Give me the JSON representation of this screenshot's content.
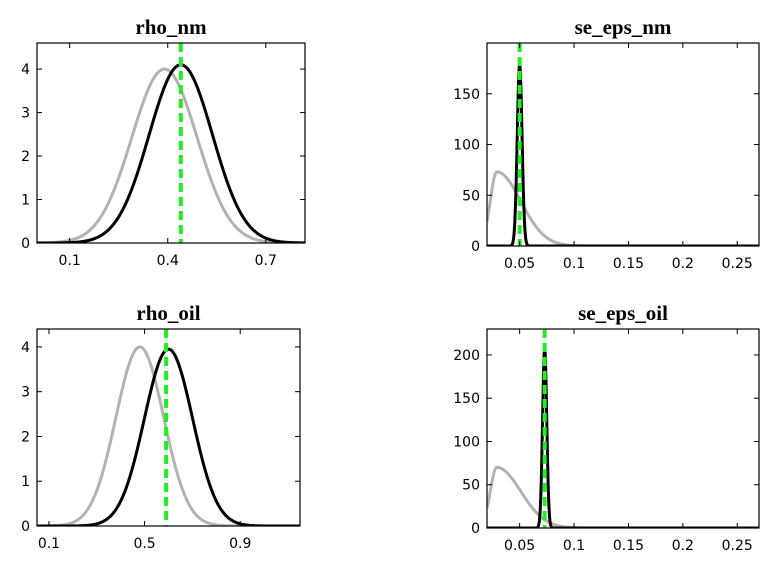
{
  "chart_data": [
    {
      "type": "line",
      "title": "rho_nm",
      "xlim": [
        0.0,
        0.82
      ],
      "ylim": [
        0,
        4.6
      ],
      "xticks": [
        0.1,
        0.4,
        0.7
      ],
      "xtick_labels": [
        "0.1",
        "0.4",
        "0.7"
      ],
      "yticks": [
        0,
        1,
        2,
        3,
        4
      ],
      "ytick_labels": [
        "0",
        "1",
        "2",
        "3",
        "4"
      ],
      "series": [
        {
          "color": "#b3b3b3",
          "shape": "normal",
          "peak_x": 0.39,
          "peak_y": 4.0,
          "sd": 0.1
        },
        {
          "color": "#000000",
          "shape": "normal",
          "peak_x": 0.44,
          "peak_y": 4.1,
          "sd": 0.097
        }
      ],
      "vline": {
        "x": 0.44,
        "color": "#22ee22"
      }
    },
    {
      "type": "line",
      "title": "se_eps_nm",
      "xlim": [
        0.02,
        0.27
      ],
      "ylim": [
        0,
        200
      ],
      "xticks": [
        0.05,
        0.1,
        0.15,
        0.2,
        0.25
      ],
      "xtick_labels": [
        "0.05",
        "0.1",
        "0.15",
        "0.2",
        "0.25"
      ],
      "yticks": [
        0,
        50,
        100,
        150
      ],
      "ytick_labels": [
        "0",
        "50",
        "100",
        "150"
      ],
      "series": [
        {
          "color": "#b3b3b3",
          "shape": "skewed",
          "peak_x": 0.029,
          "peak_y": 73,
          "sd_left": 0.006,
          "sd_right": 0.022
        },
        {
          "color": "#000000",
          "shape": "normal",
          "peak_x": 0.05,
          "peak_y": 180,
          "sd": 0.0022
        }
      ],
      "vline": {
        "x": 0.05,
        "color": "#22ee22"
      }
    },
    {
      "type": "line",
      "title": "rho_oil",
      "xlim": [
        0.05,
        1.15
      ],
      "ylim": [
        0,
        4.4
      ],
      "xticks": [
        0.1,
        0.5,
        0.9
      ],
      "xtick_labels": [
        "0.1",
        "0.5",
        "0.9"
      ],
      "yticks": [
        0,
        1,
        2,
        3,
        4
      ],
      "ytick_labels": [
        "0",
        "1",
        "2",
        "3",
        "4"
      ],
      "series": [
        {
          "color": "#b3b3b3",
          "shape": "normal",
          "peak_x": 0.48,
          "peak_y": 4.0,
          "sd": 0.1
        },
        {
          "color": "#000000",
          "shape": "normal",
          "peak_x": 0.6,
          "peak_y": 3.95,
          "sd": 0.101
        }
      ],
      "vline": {
        "x": 0.59,
        "color": "#22ee22"
      }
    },
    {
      "type": "line",
      "title": "se_eps_oil",
      "xlim": [
        0.02,
        0.27
      ],
      "ylim": [
        0,
        230
      ],
      "xticks": [
        0.05,
        0.1,
        0.15,
        0.2,
        0.25
      ],
      "xtick_labels": [
        "0.05",
        "0.1",
        "0.15",
        "0.2",
        "0.25"
      ],
      "yticks": [
        0,
        50,
        100,
        150,
        200
      ],
      "ytick_labels": [
        "0",
        "50",
        "100",
        "150",
        "200"
      ],
      "series": [
        {
          "color": "#b3b3b3",
          "shape": "skewed",
          "peak_x": 0.029,
          "peak_y": 70,
          "sd_left": 0.006,
          "sd_right": 0.022
        },
        {
          "color": "#000000",
          "shape": "normal",
          "peak_x": 0.073,
          "peak_y": 210,
          "sd": 0.0019
        }
      ],
      "vline": {
        "x": 0.073,
        "color": "#22ee22"
      }
    }
  ]
}
